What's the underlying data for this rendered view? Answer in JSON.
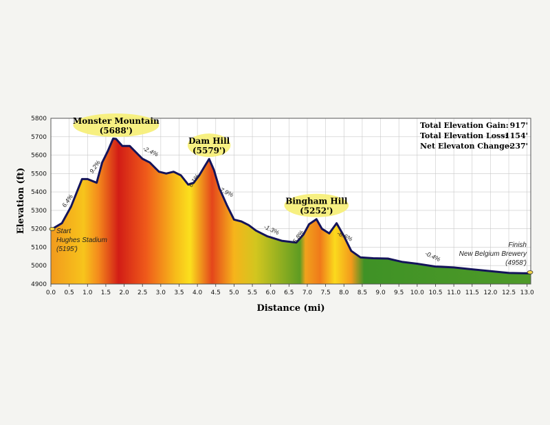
{
  "chart_data": {
    "type": "area",
    "title": "",
    "xlabel": "Distance (mi)",
    "ylabel": "Elevation (ft)",
    "xlim": [
      0,
      13.1
    ],
    "ylim": [
      4900,
      5800
    ],
    "x_ticks": [
      "0.0",
      "0.5",
      "1.0",
      "1.5",
      "2.0",
      "2.5",
      "3.0",
      "3.5",
      "4.0",
      "4.5",
      "5.0",
      "5.5",
      "6.0",
      "6.5",
      "7.0",
      "7.5",
      "8.0",
      "8.5",
      "9.0",
      "9.5",
      "10.0",
      "10.5",
      "11.0",
      "11.5",
      "12.0",
      "12.5",
      "13.0"
    ],
    "y_ticks": [
      "4900",
      "5000",
      "5100",
      "5200",
      "5300",
      "5400",
      "5500",
      "5600",
      "5700",
      "5800"
    ],
    "series": [
      {
        "name": "Elevation",
        "x": [
          0.0,
          0.3,
          0.55,
          0.85,
          1.0,
          1.25,
          1.4,
          1.55,
          1.7,
          1.78,
          1.95,
          2.15,
          2.3,
          2.5,
          2.7,
          2.95,
          3.15,
          3.35,
          3.55,
          3.75,
          3.9,
          4.05,
          4.2,
          4.32,
          4.45,
          4.6,
          4.8,
          5.0,
          5.2,
          5.4,
          5.6,
          5.9,
          6.3,
          6.7,
          6.9,
          7.05,
          7.25,
          7.4,
          7.6,
          7.8,
          8.0,
          8.2,
          8.45,
          8.8,
          9.2,
          9.6,
          10.0,
          10.5,
          11.0,
          11.5,
          12.0,
          12.5,
          13.1
        ],
        "values": [
          5195,
          5230,
          5320,
          5470,
          5470,
          5450,
          5560,
          5620,
          5690,
          5688,
          5650,
          5650,
          5620,
          5580,
          5560,
          5510,
          5500,
          5510,
          5490,
          5440,
          5450,
          5490,
          5540,
          5579,
          5520,
          5420,
          5330,
          5250,
          5240,
          5220,
          5190,
          5160,
          5135,
          5125,
          5170,
          5225,
          5252,
          5200,
          5175,
          5230,
          5160,
          5080,
          5045,
          5040,
          5038,
          5020,
          5010,
          4995,
          4990,
          4980,
          4970,
          4960,
          4958
        ]
      }
    ],
    "annotations": {
      "peaks": [
        {
          "name": "Monster Mountain",
          "elevation": "(5688')",
          "x": 1.78
        },
        {
          "name": "Dam Hill",
          "elevation": "(5579')",
          "x": 4.32
        },
        {
          "name": "Bingham Hill",
          "elevation": "(5252')",
          "x": 7.25
        }
      ],
      "grades": [
        {
          "text": "6.4%",
          "x": 0.5,
          "y": 5345
        },
        {
          "text": "9.2%",
          "x": 1.25,
          "y": 5530
        },
        {
          "text": "-2.4%",
          "x": 2.7,
          "y": 5610
        },
        {
          "text": "6.1%",
          "x": 3.95,
          "y": 5455
        },
        {
          "text": "-7.9%",
          "x": 4.75,
          "y": 5390
        },
        {
          "text": "-1.3%",
          "x": 6.0,
          "y": 5185
        },
        {
          "text": "5.8%",
          "x": 6.8,
          "y": 5150
        },
        {
          "text": "-6.6%",
          "x": 8.0,
          "y": 5150
        },
        {
          "text": "-0.4%",
          "x": 10.4,
          "y": 5040
        }
      ]
    },
    "start": {
      "label": "Start",
      "place": "Hughes Stadium",
      "elevation": "(5195')"
    },
    "finish": {
      "label": "Finish",
      "place": "New Belgium Brewery",
      "elevation": "(4958')"
    },
    "stats": [
      {
        "label": "Total Elevation Gain:",
        "value": "917'"
      },
      {
        "label": "Total Elevation Loss:",
        "value": "-1154'"
      },
      {
        "label": "Net Elevaton Change:",
        "value": "-237'"
      }
    ],
    "colors": {
      "line": "#14145a",
      "grid": "#c8c8c8",
      "callout": "#f7ef7a",
      "marker": "#f4d64a"
    },
    "gradient_stops": [
      {
        "mile": 0.0,
        "color": "#f29a1d"
      },
      {
        "mile": 0.9,
        "color": "#f7c41c"
      },
      {
        "mile": 1.3,
        "color": "#f48a1c"
      },
      {
        "mile": 1.85,
        "color": "#d21d16"
      },
      {
        "mile": 2.6,
        "color": "#ef5a1a"
      },
      {
        "mile": 3.4,
        "color": "#f7bb1a"
      },
      {
        "mile": 3.8,
        "color": "#fbe01d"
      },
      {
        "mile": 4.4,
        "color": "#e4461b"
      },
      {
        "mile": 5.0,
        "color": "#f6b41b"
      },
      {
        "mile": 5.6,
        "color": "#d2c61f"
      },
      {
        "mile": 6.8,
        "color": "#5e9c22"
      },
      {
        "mile": 6.95,
        "color": "#f0a21c"
      },
      {
        "mile": 7.35,
        "color": "#f07a1a"
      },
      {
        "mile": 7.75,
        "color": "#fbd91d"
      },
      {
        "mile": 8.2,
        "color": "#f39a1c"
      },
      {
        "mile": 8.55,
        "color": "#3f9226"
      },
      {
        "mile": 13.1,
        "color": "#4e9a28"
      }
    ]
  }
}
